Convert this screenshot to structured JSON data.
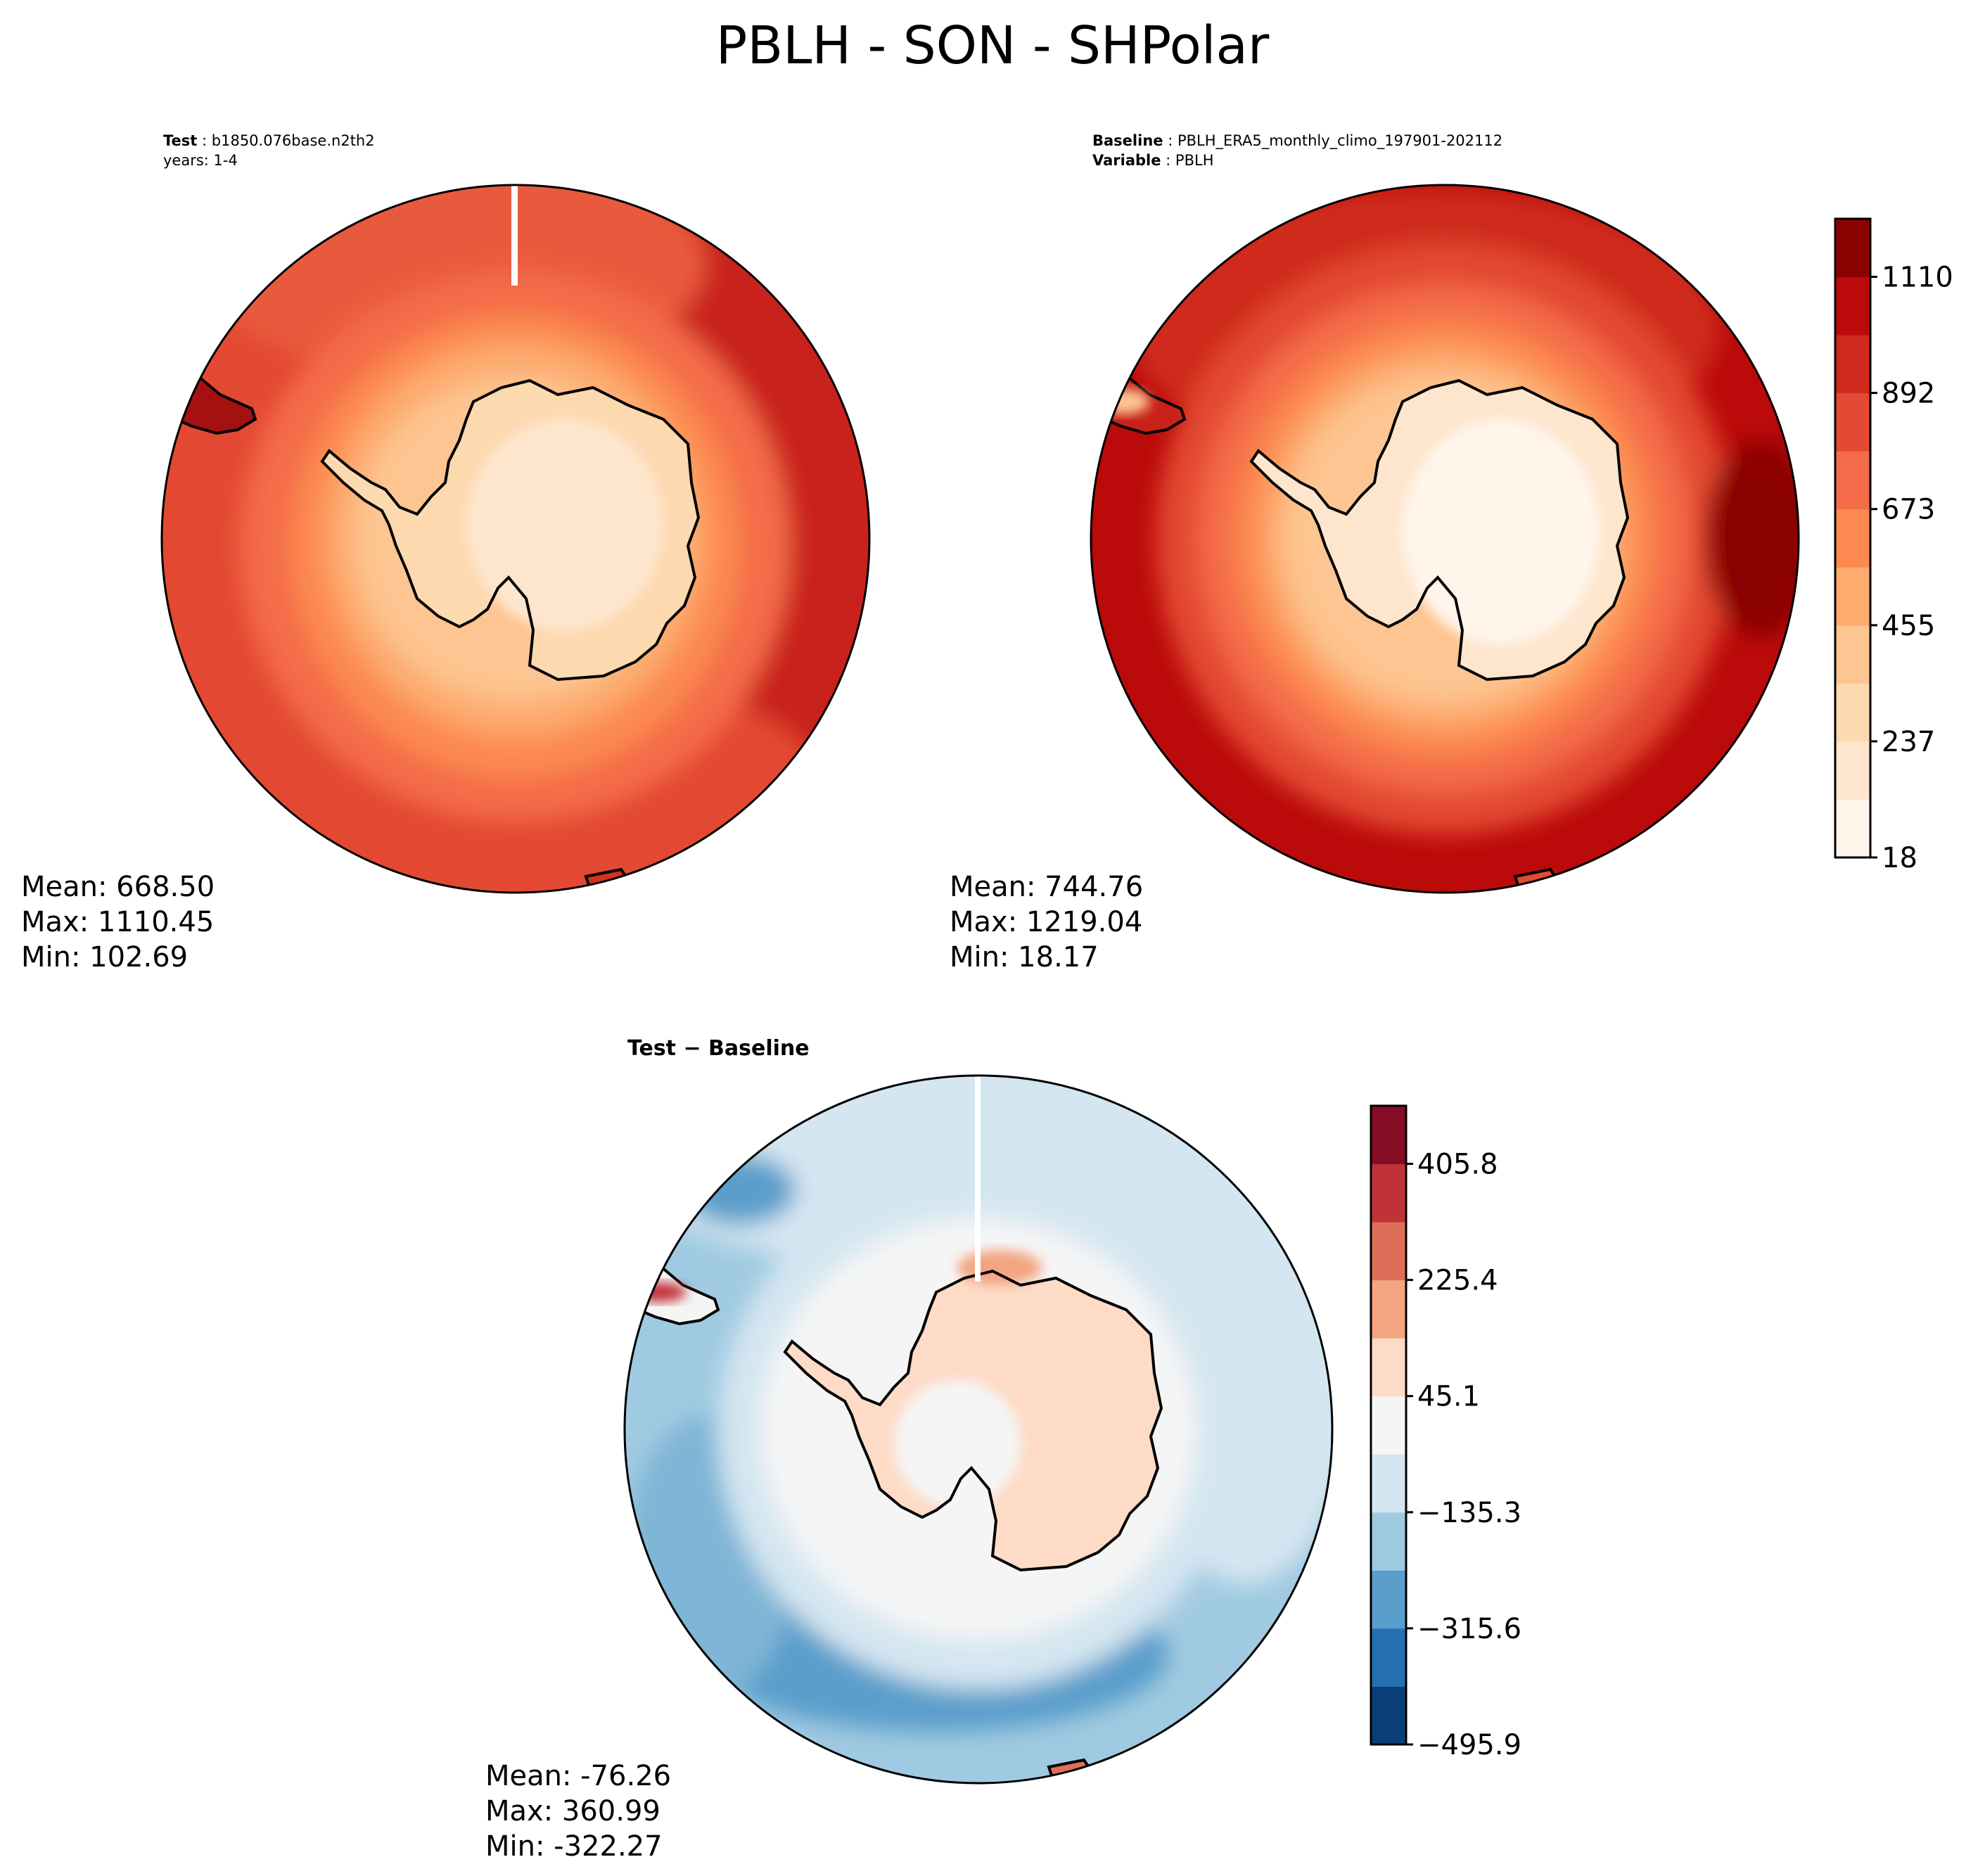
{
  "title": "PBLH - SON - SHPolar",
  "panels": {
    "test": {
      "header_label": "Test",
      "header_value": "b1850.076base.n2th2",
      "header_line2": "years: 1-4",
      "mean": "Mean: 668.50",
      "max": "Max: 1110.45",
      "min": "Min: 102.69"
    },
    "baseline": {
      "header_label": "Baseline",
      "header_value": "PBLH_ERA5_monthly_climo_197901-202112",
      "header_label2": "Variable",
      "header_value2": "PBLH",
      "mean": "Mean: 744.76",
      "max": "Max: 1219.04",
      "min": "Min: 18.17"
    },
    "diff": {
      "title": "Test − Baseline",
      "mean": "Mean: -76.26",
      "max": "Max: 360.99",
      "min": "Min: -322.27"
    }
  },
  "chart_data": [
    {
      "type": "heatmap",
      "title": "Test",
      "projection": "south-polar stereographic",
      "stats": {
        "mean": 668.5,
        "max": 1110.45,
        "min": 102.69
      },
      "field_summary": {
        "antarctic_interior": [
          150,
          350
        ],
        "coastal_ring": [
          350,
          650
        ],
        "southern_ocean": [
          650,
          900
        ],
        "mid_latitudes": [
          900,
          1110
        ]
      },
      "colorbar": "shared with Baseline"
    },
    {
      "type": "heatmap",
      "title": "Baseline",
      "projection": "south-polar stereographic",
      "stats": {
        "mean": 744.76,
        "max": 1219.04,
        "min": 18.17
      },
      "field_summary": {
        "antarctic_interior": [
          18,
          250
        ],
        "coastal_ring": [
          250,
          650
        ],
        "southern_ocean": [
          700,
          1000
        ],
        "mid_latitudes": [
          1000,
          1219
        ]
      },
      "colorbar": {
        "ticks": [
          "18",
          "237",
          "455",
          "673",
          "892",
          "1110"
        ],
        "range": [
          18,
          1219
        ],
        "colors": [
          "#fff5eb",
          "#fee6ce",
          "#fdd9b0",
          "#fdc591",
          "#fdab6f",
          "#fc8a50",
          "#f46c4a",
          "#e34a33",
          "#cf2a1e",
          "#bb0a0a",
          "#8b0000"
        ]
      }
    },
    {
      "type": "heatmap",
      "title": "Test − Baseline",
      "projection": "south-polar stereographic",
      "stats": {
        "mean": -76.26,
        "max": 360.99,
        "min": -322.27
      },
      "field_summary": {
        "antarctic_interior": [
          45,
          135
        ],
        "coast": [
          -45,
          45
        ],
        "southern_ocean": [
          -225,
          -45
        ],
        "mid_latitudes": [
          -135,
          -45
        ]
      },
      "colorbar": {
        "ticks": [
          "−495.9",
          "−315.6",
          "−135.3",
          "45.1",
          "225.4",
          "405.8"
        ],
        "range": [
          -495.9,
          495.9
        ],
        "colors": [
          "#0b3f77",
          "#2470b1",
          "#5a9ecb",
          "#a0cae1",
          "#d4e6f1",
          "#f5f5f5",
          "#fddbc7",
          "#f3a582",
          "#dd6f58",
          "#c03237",
          "#860b24"
        ]
      }
    }
  ]
}
